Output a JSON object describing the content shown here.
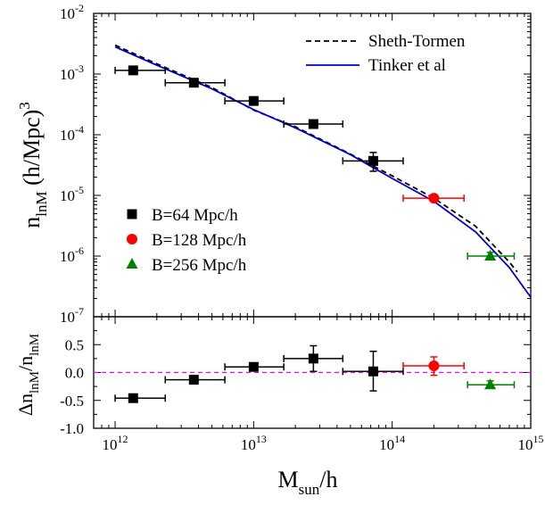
{
  "chart_data": [
    {
      "type": "scatter",
      "panel": "top",
      "ylabel": {
        "main": "n",
        "sub": "lnM",
        "rest": " (h/Mpc)",
        "sup": "3"
      },
      "xscale": "log",
      "yscale": "log",
      "xlim": [
        700000000000.0,
        1000000000000000.0
      ],
      "ylim": [
        1e-07,
        0.01
      ],
      "yticks": [
        {
          "value": 1e-07,
          "base": "10",
          "exp": "-7"
        },
        {
          "value": 1e-06,
          "base": "10",
          "exp": "-6"
        },
        {
          "value": 1e-05,
          "base": "10",
          "exp": "-5"
        },
        {
          "value": 0.0001,
          "base": "10",
          "exp": "-4"
        },
        {
          "value": 0.001,
          "base": "10",
          "exp": "-3"
        },
        {
          "value": 0.01,
          "base": "10",
          "exp": "-2"
        }
      ],
      "legend": {
        "placement": "top-right",
        "entries": [
          {
            "label": "Sheth-Tormen",
            "style": "dashed",
            "color": "#000000"
          },
          {
            "label": "Tinker et al",
            "style": "solid",
            "color": "#0000cc"
          }
        ]
      },
      "point_legend": {
        "placement": "bottom-left",
        "entries": [
          {
            "label": "B=64 Mpc/h",
            "marker": "square",
            "color": "#000000"
          },
          {
            "label": "B=128 Mpc/h",
            "marker": "circle",
            "color": "#ff0000"
          },
          {
            "label": "B=256 Mpc/h",
            "marker": "triangle",
            "color": "#008000"
          }
        ]
      },
      "curves": [
        {
          "name": "Sheth-Tormen",
          "color": "#000000",
          "style": "dashed",
          "x": [
            1000000000000.0,
            2000000000000.0,
            5000000000000.0,
            10000000000000.0,
            20000000000000.0,
            50000000000000.0,
            100000000000000.0,
            200000000000000.0,
            400000000000000.0,
            700000000000000.0,
            800000000000000.0
          ],
          "y": [
            0.003,
            0.00147,
            0.0006,
            0.000255,
            0.000135,
            4.8e-05,
            2.1e-05,
            9e-06,
            3.1e-06,
            8e-07,
            5.5e-07
          ]
        },
        {
          "name": "Tinker et al",
          "color": "#0000cc",
          "style": "solid",
          "x": [
            1000000000000.0,
            2000000000000.0,
            5000000000000.0,
            10000000000000.0,
            20000000000000.0,
            50000000000000.0,
            100000000000000.0,
            200000000000000.0,
            400000000000000.0,
            700000000000000.0,
            1000000000000000.0
          ],
          "y": [
            0.0028,
            0.0014,
            0.00057,
            0.00026,
            0.00013,
            4.7e-05,
            1.9e-05,
            8e-06,
            2.5e-06,
            6.5e-07,
            2.1e-07
          ]
        }
      ],
      "points": [
        {
          "series": "B=64 Mpc/h",
          "marker": "square",
          "color": "#000000",
          "xerr_color": "#000000",
          "data": [
            {
              "x": 1350000000000.0,
              "y": 0.00115,
              "xlo": 1000000000000.0,
              "xhi": 2300000000000.0,
              "ylo": 0.00115,
              "yhi": 0.00115
            },
            {
              "x": 3700000000000.0,
              "y": 0.00072,
              "xlo": 2300000000000.0,
              "xhi": 6200000000000.0,
              "ylo": 0.00072,
              "yhi": 0.00072
            },
            {
              "x": 10000000000000.0,
              "y": 0.00036,
              "xlo": 6200000000000.0,
              "xhi": 16500000000000.0,
              "ylo": 0.00036,
              "yhi": 0.00036
            },
            {
              "x": 27000000000000.0,
              "y": 0.00015,
              "xlo": 16500000000000.0,
              "xhi": 44000000000000.0,
              "ylo": 0.00013,
              "yhi": 0.00017
            },
            {
              "x": 73000000000000.0,
              "y": 3.7e-05,
              "xlo": 44000000000000.0,
              "xhi": 120000000000000.0,
              "ylo": 2.5e-05,
              "yhi": 5.1e-05
            }
          ]
        },
        {
          "series": "B=128 Mpc/h",
          "marker": "circle",
          "color": "#ff0000",
          "xerr_color": "#ff0000",
          "data": [
            {
              "x": 200000000000000.0,
              "y": 9e-06,
              "xlo": 120000000000000.0,
              "xhi": 330000000000000.0,
              "ylo": 8.5e-06,
              "yhi": 9.5e-06
            }
          ]
        },
        {
          "series": "B=256 Mpc/h",
          "marker": "triangle",
          "color": "#008000",
          "xerr_color": "#008000",
          "data": [
            {
              "x": 510000000000000.0,
              "y": 1e-06,
              "xlo": 350000000000000.0,
              "xhi": 760000000000000.0,
              "ylo": 8.8e-07,
              "yhi": 1.15e-06
            }
          ]
        }
      ]
    },
    {
      "type": "scatter",
      "panel": "bottom",
      "ylabel": {
        "pre": "Δn",
        "sub1": "lnM",
        "mid": "/n",
        "sub2": "lnM"
      },
      "xlabel": {
        "main": "M",
        "sub": "sun",
        "rest": "/h"
      },
      "xscale": "log",
      "xlim": [
        700000000000.0,
        1000000000000000.0
      ],
      "ylim": [
        -1.0,
        1.0
      ],
      "xticks": [
        {
          "value": 1000000000000.0,
          "base": "10",
          "exp": "12"
        },
        {
          "value": 10000000000000.0,
          "base": "10",
          "exp": "13"
        },
        {
          "value": 100000000000000.0,
          "base": "10",
          "exp": "14"
        },
        {
          "value": 1000000000000000.0,
          "base": "10",
          "exp": "15"
        }
      ],
      "yticks": [
        {
          "value": -1.0,
          "label": "-1.0"
        },
        {
          "value": -0.5,
          "label": "-0.5"
        },
        {
          "value": 0.0,
          "label": "0.0"
        },
        {
          "value": 0.5,
          "label": "0.5"
        },
        {
          "value": 1.0,
          "label": "1.0"
        }
      ],
      "reference_line": {
        "y": 0.0,
        "color": "#ff00ff",
        "style": "dashed"
      },
      "points": [
        {
          "series": "B=64 Mpc/h",
          "marker": "square",
          "color": "#000000",
          "data": [
            {
              "x": 1350000000000.0,
              "y": -0.46,
              "xlo": 1000000000000.0,
              "xhi": 2300000000000.0,
              "ylo": -0.46,
              "yhi": -0.46
            },
            {
              "x": 3700000000000.0,
              "y": -0.13,
              "xlo": 2300000000000.0,
              "xhi": 6200000000000.0,
              "ylo": -0.13,
              "yhi": -0.13
            },
            {
              "x": 10000000000000.0,
              "y": 0.1,
              "xlo": 6200000000000.0,
              "xhi": 16500000000000.0,
              "ylo": 0.1,
              "yhi": 0.1
            },
            {
              "x": 27000000000000.0,
              "y": 0.25,
              "xlo": 16500000000000.0,
              "xhi": 44000000000000.0,
              "ylo": 0.02,
              "yhi": 0.48
            },
            {
              "x": 73000000000000.0,
              "y": 0.02,
              "xlo": 44000000000000.0,
              "xhi": 120000000000000.0,
              "ylo": -0.33,
              "yhi": 0.38
            }
          ]
        },
        {
          "series": "B=128 Mpc/h",
          "marker": "circle",
          "color": "#ff0000",
          "data": [
            {
              "x": 200000000000000.0,
              "y": 0.12,
              "xlo": 120000000000000.0,
              "xhi": 330000000000000.0,
              "ylo": -0.05,
              "yhi": 0.28
            }
          ]
        },
        {
          "series": "B=256 Mpc/h",
          "marker": "triangle",
          "color": "#008000",
          "data": [
            {
              "x": 510000000000000.0,
              "y": -0.22,
              "xlo": 350000000000000.0,
              "xhi": 760000000000000.0,
              "ylo": -0.28,
              "yhi": -0.15
            }
          ]
        }
      ]
    }
  ]
}
